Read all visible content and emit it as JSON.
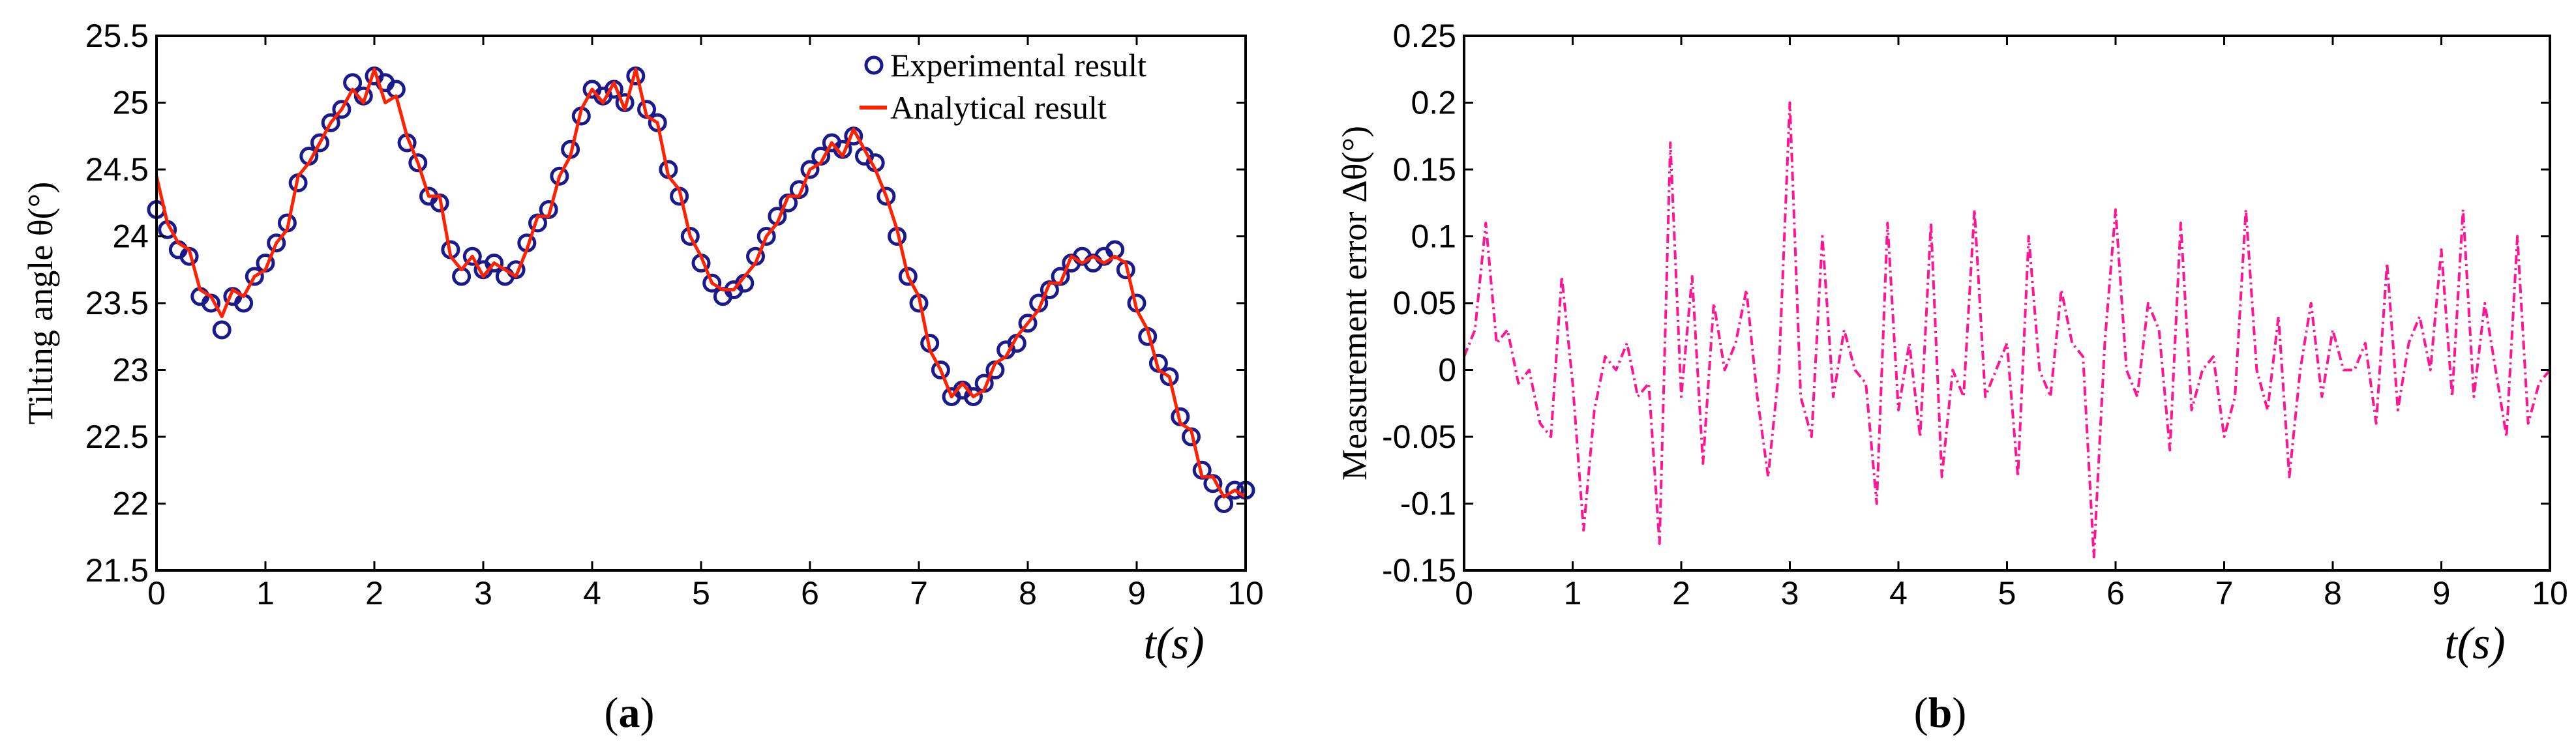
{
  "figure": {
    "panel_a": {
      "caption_open": "(",
      "caption_letter": "a",
      "caption_close": ")"
    },
    "panel_b": {
      "caption_open": "(",
      "caption_letter": "b",
      "caption_close": ")"
    }
  },
  "colors": {
    "experimental": "#1a1a8c",
    "analytical": "#ff2200",
    "error": "#ff1493",
    "axis": "#000000"
  },
  "chart_data": [
    {
      "id": "a",
      "type": "line",
      "title": "",
      "xlabel": "t(s)",
      "ylabel": "Tilting angle θ(°)",
      "xlim": [
        0,
        10
      ],
      "ylim": [
        21.5,
        25.5
      ],
      "xticks": [
        0,
        1,
        2,
        3,
        4,
        5,
        6,
        7,
        8,
        9,
        10
      ],
      "yticks": [
        21.5,
        22,
        22.5,
        23,
        23.5,
        24,
        24.5,
        25,
        25.5
      ],
      "ytick_labels": [
        "21.5",
        "22",
        "22.5",
        "23",
        "23.5",
        "24",
        "24.5",
        "25",
        "25.5"
      ],
      "legend_position": "top-right",
      "series": [
        {
          "name": "Experimental result",
          "style": "circle-markers",
          "x": [
            0,
            0.1,
            0.2,
            0.3,
            0.4,
            0.5,
            0.6,
            0.7,
            0.8,
            0.9,
            1.0,
            1.1,
            1.2,
            1.3,
            1.4,
            1.5,
            1.6,
            1.7,
            1.8,
            1.9,
            2.0,
            2.1,
            2.2,
            2.3,
            2.4,
            2.5,
            2.6,
            2.7,
            2.8,
            2.9,
            3.0,
            3.1,
            3.2,
            3.3,
            3.4,
            3.5,
            3.6,
            3.7,
            3.8,
            3.9,
            4.0,
            4.1,
            4.2,
            4.3,
            4.4,
            4.5,
            4.6,
            4.7,
            4.8,
            4.9,
            5.0,
            5.1,
            5.2,
            5.3,
            5.4,
            5.5,
            5.6,
            5.7,
            5.8,
            5.9,
            6.0,
            6.1,
            6.2,
            6.3,
            6.4,
            6.5,
            6.6,
            6.7,
            6.8,
            6.9,
            7.0,
            7.1,
            7.2,
            7.3,
            7.4,
            7.5,
            7.6,
            7.7,
            7.8,
            7.9,
            8.0,
            8.1,
            8.2,
            8.3,
            8.4,
            8.5,
            8.6,
            8.7,
            8.8,
            8.9,
            9.0,
            9.1,
            9.2,
            9.3,
            9.4,
            9.5,
            9.6,
            9.7,
            9.8,
            9.9,
            10.0
          ],
          "values": [
            24.2,
            24.05,
            23.9,
            23.85,
            23.55,
            23.5,
            23.3,
            23.55,
            23.5,
            23.7,
            23.8,
            23.95,
            24.1,
            24.4,
            24.6,
            24.7,
            24.85,
            24.95,
            25.15,
            25.05,
            25.2,
            25.15,
            25.1,
            24.7,
            24.55,
            24.3,
            24.25,
            23.9,
            23.7,
            23.85,
            23.75,
            23.8,
            23.7,
            23.75,
            23.95,
            24.1,
            24.2,
            24.45,
            24.65,
            24.9,
            25.1,
            25.05,
            25.1,
            25.0,
            25.2,
            24.95,
            24.85,
            24.5,
            24.3,
            24.0,
            23.8,
            23.65,
            23.55,
            23.6,
            23.65,
            23.85,
            24.0,
            24.15,
            24.25,
            24.35,
            24.5,
            24.6,
            24.7,
            24.65,
            24.75,
            24.6,
            24.55,
            24.3,
            24.0,
            23.7,
            23.5,
            23.2,
            23.0,
            22.8,
            22.85,
            22.8,
            22.9,
            23.0,
            23.15,
            23.2,
            23.35,
            23.5,
            23.6,
            23.7,
            23.8,
            23.85,
            23.8,
            23.85,
            23.9,
            23.75,
            23.5,
            23.25,
            23.05,
            22.95,
            22.65,
            22.5,
            22.25,
            22.15,
            22.0,
            22.1,
            22.1
          ]
        },
        {
          "name": "Analytical result",
          "style": "line",
          "x": [
            0,
            0.1,
            0.2,
            0.3,
            0.4,
            0.5,
            0.6,
            0.7,
            0.8,
            0.9,
            1.0,
            1.1,
            1.2,
            1.3,
            1.4,
            1.5,
            1.6,
            1.7,
            1.8,
            1.9,
            2.0,
            2.1,
            2.2,
            2.3,
            2.4,
            2.5,
            2.6,
            2.7,
            2.8,
            2.9,
            3.0,
            3.1,
            3.2,
            3.3,
            3.4,
            3.5,
            3.6,
            3.7,
            3.8,
            3.9,
            4.0,
            4.1,
            4.2,
            4.3,
            4.4,
            4.5,
            4.6,
            4.7,
            4.8,
            4.9,
            5.0,
            5.1,
            5.2,
            5.3,
            5.4,
            5.5,
            5.6,
            5.7,
            5.8,
            5.9,
            6.0,
            6.1,
            6.2,
            6.3,
            6.4,
            6.5,
            6.6,
            6.7,
            6.8,
            6.9,
            7.0,
            7.1,
            7.2,
            7.3,
            7.4,
            7.5,
            7.6,
            7.7,
            7.8,
            7.9,
            8.0,
            8.1,
            8.2,
            8.3,
            8.4,
            8.5,
            8.6,
            8.7,
            8.8,
            8.9,
            9.0,
            9.1,
            9.2,
            9.3,
            9.4,
            9.5,
            9.6,
            9.7,
            9.8,
            9.9,
            10.0
          ],
          "values": [
            24.45,
            24.1,
            23.95,
            23.9,
            23.6,
            23.55,
            23.4,
            23.6,
            23.55,
            23.7,
            23.75,
            23.95,
            24.05,
            24.45,
            24.55,
            24.7,
            24.85,
            24.95,
            25.1,
            25.0,
            25.25,
            25.0,
            25.05,
            24.75,
            24.55,
            24.3,
            24.3,
            23.85,
            23.75,
            23.85,
            23.7,
            23.8,
            23.75,
            23.7,
            23.9,
            24.15,
            24.15,
            24.45,
            24.6,
            24.95,
            25.1,
            25.0,
            25.15,
            24.95,
            25.25,
            24.9,
            24.85,
            24.45,
            24.35,
            24.0,
            23.85,
            23.65,
            23.6,
            23.6,
            23.7,
            23.8,
            24.0,
            24.1,
            24.3,
            24.3,
            24.5,
            24.55,
            24.7,
            24.6,
            24.8,
            24.65,
            24.5,
            24.3,
            24.05,
            23.7,
            23.55,
            23.15,
            23.0,
            22.8,
            22.9,
            22.8,
            22.85,
            23.05,
            23.1,
            23.25,
            23.35,
            23.45,
            23.65,
            23.65,
            23.85,
            23.8,
            23.85,
            23.8,
            23.85,
            23.8,
            23.45,
            23.3,
            23.0,
            22.95,
            22.6,
            22.55,
            22.2,
            22.2,
            22.05,
            22.1,
            22.05
          ]
        }
      ]
    },
    {
      "id": "b",
      "type": "line",
      "title": "",
      "xlabel": "t(s)",
      "ylabel": "Measurement error Δθ(°)",
      "xlim": [
        0,
        10
      ],
      "ylim": [
        -0.15,
        0.25
      ],
      "xticks": [
        0,
        1,
        2,
        3,
        4,
        5,
        6,
        7,
        8,
        9,
        10
      ],
      "yticks": [
        -0.15,
        -0.1,
        -0.05,
        0,
        0.05,
        0.1,
        0.15,
        0.2,
        0.25
      ],
      "ytick_labels": [
        "-0.15",
        "-0.1",
        "-0.05",
        "0",
        "0.05",
        "0.1",
        "0.15",
        "0.2",
        "0.25"
      ],
      "series": [
        {
          "name": "Measurement error",
          "style": "dash-dot",
          "x": [
            0,
            0.1,
            0.2,
            0.3,
            0.4,
            0.5,
            0.6,
            0.7,
            0.8,
            0.9,
            1.0,
            1.1,
            1.2,
            1.3,
            1.4,
            1.5,
            1.6,
            1.7,
            1.8,
            1.9,
            2.0,
            2.1,
            2.2,
            2.3,
            2.4,
            2.5,
            2.6,
            2.7,
            2.8,
            2.9,
            3.0,
            3.1,
            3.2,
            3.3,
            3.4,
            3.5,
            3.6,
            3.7,
            3.8,
            3.9,
            4.0,
            4.1,
            4.2,
            4.3,
            4.4,
            4.5,
            4.6,
            4.7,
            4.8,
            4.9,
            5.0,
            5.1,
            5.2,
            5.3,
            5.4,
            5.5,
            5.6,
            5.7,
            5.8,
            5.9,
            6.0,
            6.1,
            6.2,
            6.3,
            6.4,
            6.5,
            6.6,
            6.7,
            6.8,
            6.9,
            7.0,
            7.1,
            7.2,
            7.3,
            7.4,
            7.5,
            7.6,
            7.7,
            7.8,
            7.9,
            8.0,
            8.1,
            8.2,
            8.3,
            8.4,
            8.5,
            8.6,
            8.7,
            8.8,
            8.9,
            9.0,
            9.1,
            9.2,
            9.3,
            9.4,
            9.5,
            9.6,
            9.7,
            9.8,
            9.9,
            10.0
          ],
          "values": [
            0.01,
            0.03,
            0.11,
            0.02,
            0.03,
            -0.01,
            0.0,
            -0.04,
            -0.05,
            0.07,
            -0.01,
            -0.12,
            -0.03,
            0.01,
            0.0,
            0.02,
            -0.02,
            -0.01,
            -0.13,
            0.17,
            -0.02,
            0.07,
            -0.07,
            0.05,
            0.0,
            0.02,
            0.06,
            -0.02,
            -0.08,
            0.0,
            0.2,
            -0.02,
            -0.05,
            0.1,
            -0.02,
            0.03,
            0.0,
            -0.01,
            -0.1,
            0.11,
            -0.03,
            0.02,
            -0.05,
            0.11,
            -0.08,
            0.0,
            -0.02,
            0.12,
            -0.02,
            0.0,
            0.02,
            -0.08,
            0.1,
            0.0,
            -0.02,
            0.06,
            0.02,
            0.01,
            -0.14,
            0.02,
            0.12,
            0.0,
            -0.02,
            0.05,
            0.03,
            -0.06,
            0.11,
            -0.03,
            0.0,
            0.01,
            -0.05,
            -0.02,
            0.12,
            0.0,
            -0.03,
            0.04,
            -0.08,
            0.0,
            0.05,
            -0.02,
            0.03,
            0.0,
            0.0,
            0.02,
            -0.04,
            0.08,
            -0.03,
            0.02,
            0.04,
            0.0,
            0.09,
            -0.02,
            0.12,
            -0.02,
            0.05,
            0.0,
            -0.05,
            0.1,
            -0.04,
            -0.01,
            0.0
          ]
        }
      ]
    }
  ]
}
